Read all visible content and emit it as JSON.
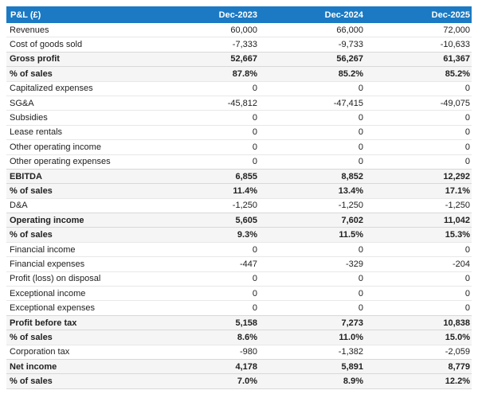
{
  "colors": {
    "header_bg": "#1b7ac3",
    "header_text": "#ffffff",
    "emphasis_bg": "#f5f5f5",
    "row_border": "#e8e8e8",
    "emphasis_border": "#d8d8d8",
    "text": "#212121",
    "page_bg": "#ffffff"
  },
  "chart_data": {
    "type": "table",
    "title": "P&L (£)",
    "columns": [
      "Dec-2023",
      "Dec-2024",
      "Dec-2025"
    ],
    "rows": [
      {
        "label": "Revenues",
        "values": [
          "60,000",
          "66,000",
          "72,000"
        ],
        "emphasis": false
      },
      {
        "label": "Cost of goods sold",
        "values": [
          "-7,333",
          "-9,733",
          "-10,633"
        ],
        "emphasis": false
      },
      {
        "label": "Gross profit",
        "values": [
          "52,667",
          "56,267",
          "61,367"
        ],
        "emphasis": true
      },
      {
        "label": "% of sales",
        "values": [
          "87.8%",
          "85.2%",
          "85.2%"
        ],
        "emphasis": true
      },
      {
        "label": "Capitalized expenses",
        "values": [
          "0",
          "0",
          "0"
        ],
        "emphasis": false
      },
      {
        "label": "SG&A",
        "values": [
          "-45,812",
          "-47,415",
          "-49,075"
        ],
        "emphasis": false
      },
      {
        "label": "Subsidies",
        "values": [
          "0",
          "0",
          "0"
        ],
        "emphasis": false
      },
      {
        "label": "Lease rentals",
        "values": [
          "0",
          "0",
          "0"
        ],
        "emphasis": false
      },
      {
        "label": "Other operating income",
        "values": [
          "0",
          "0",
          "0"
        ],
        "emphasis": false
      },
      {
        "label": "Other operating expenses",
        "values": [
          "0",
          "0",
          "0"
        ],
        "emphasis": false
      },
      {
        "label": "EBITDA",
        "values": [
          "6,855",
          "8,852",
          "12,292"
        ],
        "emphasis": true
      },
      {
        "label": "% of sales",
        "values": [
          "11.4%",
          "13.4%",
          "17.1%"
        ],
        "emphasis": true
      },
      {
        "label": "D&A",
        "values": [
          "-1,250",
          "-1,250",
          "-1,250"
        ],
        "emphasis": false
      },
      {
        "label": "Operating income",
        "values": [
          "5,605",
          "7,602",
          "11,042"
        ],
        "emphasis": true
      },
      {
        "label": "% of sales",
        "values": [
          "9.3%",
          "11.5%",
          "15.3%"
        ],
        "emphasis": true
      },
      {
        "label": "Financial income",
        "values": [
          "0",
          "0",
          "0"
        ],
        "emphasis": false
      },
      {
        "label": "Financial expenses",
        "values": [
          "-447",
          "-329",
          "-204"
        ],
        "emphasis": false
      },
      {
        "label": "Profit (loss) on disposal",
        "values": [
          "0",
          "0",
          "0"
        ],
        "emphasis": false
      },
      {
        "label": "Exceptional income",
        "values": [
          "0",
          "0",
          "0"
        ],
        "emphasis": false
      },
      {
        "label": "Exceptional expenses",
        "values": [
          "0",
          "0",
          "0"
        ],
        "emphasis": false
      },
      {
        "label": "Profit before tax",
        "values": [
          "5,158",
          "7,273",
          "10,838"
        ],
        "emphasis": true
      },
      {
        "label": "% of sales",
        "values": [
          "8.6%",
          "11.0%",
          "15.0%"
        ],
        "emphasis": true
      },
      {
        "label": "Corporation tax",
        "values": [
          "-980",
          "-1,382",
          "-2,059"
        ],
        "emphasis": false
      },
      {
        "label": "Net income",
        "values": [
          "4,178",
          "5,891",
          "8,779"
        ],
        "emphasis": true
      },
      {
        "label": "% of sales",
        "values": [
          "7.0%",
          "8.9%",
          "12.2%"
        ],
        "emphasis": true
      }
    ]
  }
}
